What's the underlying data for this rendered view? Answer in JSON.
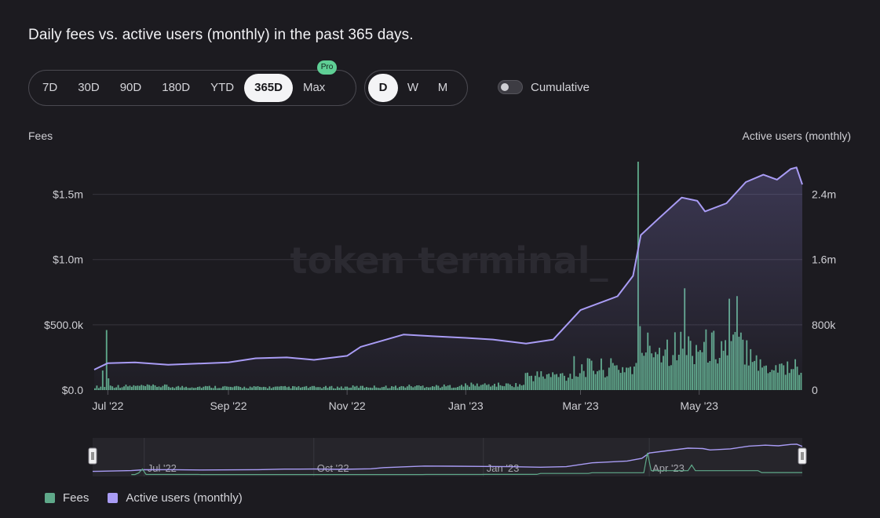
{
  "title": "Daily fees vs. active users (monthly) in the past 365 days.",
  "range_buttons": [
    {
      "label": "7D",
      "active": false
    },
    {
      "label": "30D",
      "active": false
    },
    {
      "label": "90D",
      "active": false
    },
    {
      "label": "180D",
      "active": false
    },
    {
      "label": "YTD",
      "active": false
    },
    {
      "label": "365D",
      "active": true
    },
    {
      "label": "Max",
      "active": false,
      "badge": "Pro"
    }
  ],
  "granularity_buttons": [
    {
      "label": "D",
      "active": true
    },
    {
      "label": "W",
      "active": false
    },
    {
      "label": "M",
      "active": false
    }
  ],
  "cumulative": {
    "label": "Cumulative",
    "on": false
  },
  "watermark": "token terminal_",
  "legend": [
    {
      "label": "Fees",
      "color": "#5fa98a"
    },
    {
      "label": "Active users (monthly)",
      "color": "#a99cf5"
    }
  ],
  "colors": {
    "fees": "#5fa98a",
    "users": "#a99cf5",
    "grid": "#36353c",
    "background": "#1c1b20"
  },
  "chart_data": {
    "type": "bar+line",
    "x_range": [
      "2022-06-24",
      "2023-06-23"
    ],
    "x_ticks": [
      "Jul '22",
      "Sep '22",
      "Nov '22",
      "Jan '23",
      "Mar '23",
      "May '23"
    ],
    "y_left": {
      "title": "Fees",
      "ticks": [
        "$0.0",
        "$500.0k",
        "$1.0m",
        "$1.5m"
      ],
      "range": [
        0,
        1750000
      ]
    },
    "y_right": {
      "title": "Active users (monthly)",
      "ticks": [
        "0",
        "800k",
        "1.6m",
        "2.4m"
      ],
      "range": [
        0,
        2800000
      ]
    },
    "grid": true,
    "fees_daily_notable": [
      {
        "date": "2022-06-28",
        "value": 150000
      },
      {
        "date": "2022-06-30",
        "value": 460000
      },
      {
        "date": "2022-07-01",
        "value": 90000
      },
      {
        "date": "2023-02-26",
        "value": 260000
      },
      {
        "date": "2023-03-31",
        "value": 1750000
      },
      {
        "date": "2023-04-01",
        "value": 490000
      },
      {
        "date": "2023-04-24",
        "value": 780000
      },
      {
        "date": "2023-05-17",
        "value": 700000
      },
      {
        "date": "2023-05-21",
        "value": 720000
      }
    ],
    "fees_baseline_by_month": [
      {
        "month": "2022-07",
        "value": 30000
      },
      {
        "month": "2022-08",
        "value": 25000
      },
      {
        "month": "2022-09",
        "value": 22000
      },
      {
        "month": "2022-10",
        "value": 22000
      },
      {
        "month": "2022-11",
        "value": 25000
      },
      {
        "month": "2022-12",
        "value": 30000
      },
      {
        "month": "2023-01",
        "value": 40000
      },
      {
        "month": "2023-02",
        "value": 110000
      },
      {
        "month": "2023-03",
        "value": 170000
      },
      {
        "month": "2023-04",
        "value": 330000
      },
      {
        "month": "2023-05",
        "value": 330000
      },
      {
        "month": "2023-06",
        "value": 180000
      }
    ],
    "active_users": [
      {
        "date": "2022-06-24",
        "value": 250000
      },
      {
        "date": "2022-07-01",
        "value": 330000
      },
      {
        "date": "2022-07-15",
        "value": 340000
      },
      {
        "date": "2022-08-01",
        "value": 310000
      },
      {
        "date": "2022-09-01",
        "value": 340000
      },
      {
        "date": "2022-09-15",
        "value": 390000
      },
      {
        "date": "2022-10-01",
        "value": 400000
      },
      {
        "date": "2022-10-15",
        "value": 370000
      },
      {
        "date": "2022-11-01",
        "value": 420000
      },
      {
        "date": "2022-11-08",
        "value": 530000
      },
      {
        "date": "2022-11-30",
        "value": 680000
      },
      {
        "date": "2022-12-15",
        "value": 660000
      },
      {
        "date": "2023-01-01",
        "value": 640000
      },
      {
        "date": "2023-01-15",
        "value": 620000
      },
      {
        "date": "2023-02-01",
        "value": 570000
      },
      {
        "date": "2023-02-15",
        "value": 620000
      },
      {
        "date": "2023-03-01",
        "value": 980000
      },
      {
        "date": "2023-03-20",
        "value": 1150000
      },
      {
        "date": "2023-03-28",
        "value": 1400000
      },
      {
        "date": "2023-04-01",
        "value": 1900000
      },
      {
        "date": "2023-04-10",
        "value": 2100000
      },
      {
        "date": "2023-04-22",
        "value": 2360000
      },
      {
        "date": "2023-04-30",
        "value": 2320000
      },
      {
        "date": "2023-05-04",
        "value": 2190000
      },
      {
        "date": "2023-05-15",
        "value": 2290000
      },
      {
        "date": "2023-05-25",
        "value": 2550000
      },
      {
        "date": "2023-06-03",
        "value": 2640000
      },
      {
        "date": "2023-06-10",
        "value": 2580000
      },
      {
        "date": "2023-06-17",
        "value": 2710000
      },
      {
        "date": "2023-06-20",
        "value": 2730000
      },
      {
        "date": "2023-06-23",
        "value": 2520000
      }
    ]
  },
  "navigator": {
    "x_range": [
      "2022-06-03",
      "2023-06-23"
    ],
    "ticks": [
      "Jul '22",
      "Oct '22",
      "Jan '23",
      "Apr '23"
    ]
  }
}
